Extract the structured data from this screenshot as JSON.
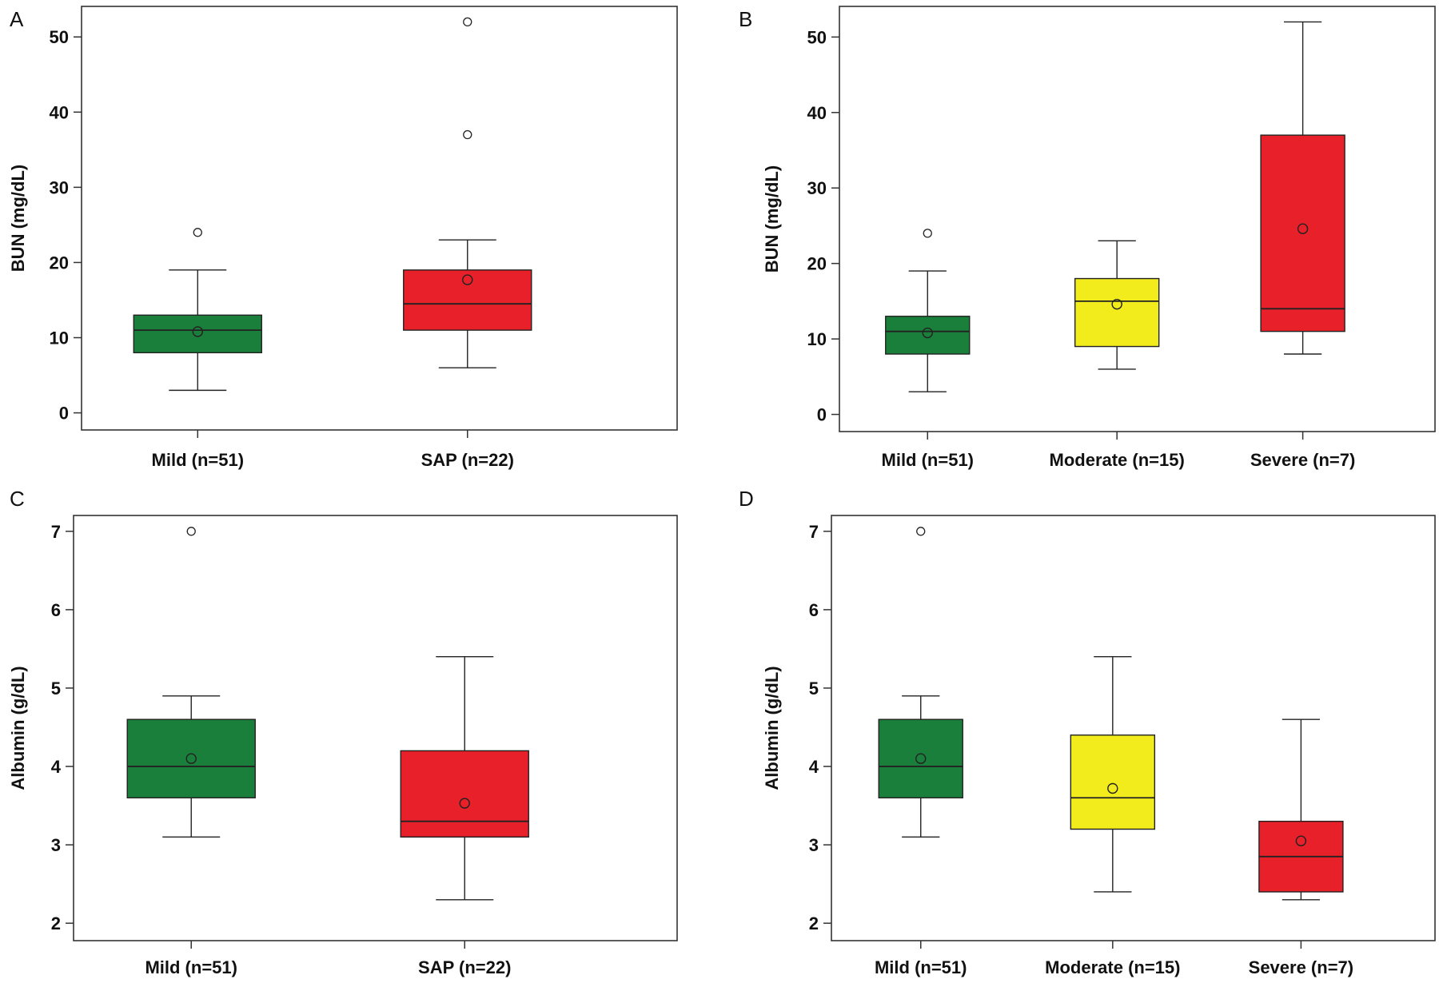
{
  "colors": {
    "mild": "#1a7f3b",
    "moderate": "#f2ec1d",
    "severe": "#e8202a",
    "frame": "#333333",
    "line": "#222222"
  },
  "chart_data": [
    {
      "panel": "A",
      "type": "box",
      "ylabel": "BUN (mg/dL)",
      "ylim": [
        -1,
        53
      ],
      "yticks": [
        0,
        10,
        20,
        30,
        40,
        50
      ],
      "categories": [
        "Mild (n=51)",
        "SAP (n=22)"
      ],
      "boxes": [
        {
          "color": "mild",
          "q1": 8,
          "median": 11,
          "q3": 13,
          "whisker_low": 3,
          "whisker_high": 19,
          "mean": 10.8,
          "outliers": [
            24
          ]
        },
        {
          "color": "severe",
          "q1": 11,
          "median": 14.5,
          "q3": 19,
          "whisker_low": 6,
          "whisker_high": 23,
          "mean": 17.7,
          "outliers": [
            37,
            52
          ]
        }
      ]
    },
    {
      "panel": "B",
      "type": "box",
      "ylabel": "BUN (mg/dL)",
      "ylim": [
        -1,
        53
      ],
      "yticks": [
        0,
        10,
        20,
        30,
        40,
        50
      ],
      "categories": [
        "Mild (n=51)",
        "Moderate (n=15)",
        "Severe (n=7)"
      ],
      "boxes": [
        {
          "color": "mild",
          "q1": 8,
          "median": 11,
          "q3": 13,
          "whisker_low": 3,
          "whisker_high": 19,
          "mean": 10.8,
          "outliers": [
            24
          ]
        },
        {
          "color": "moderate",
          "q1": 9,
          "median": 15,
          "q3": 18,
          "whisker_low": 6,
          "whisker_high": 23,
          "mean": 14.6,
          "outliers": []
        },
        {
          "color": "severe",
          "q1": 11,
          "median": 14,
          "q3": 37,
          "whisker_low": 8,
          "whisker_high": 52,
          "mean": 24.6,
          "outliers": []
        }
      ]
    },
    {
      "panel": "C",
      "type": "box",
      "ylabel": "Albumin (g/dL)",
      "ylim": [
        1.9,
        7.1
      ],
      "yticks": [
        2,
        3,
        4,
        5,
        6,
        7
      ],
      "categories": [
        "Mild (n=51)",
        "SAP (n=22)"
      ],
      "boxes": [
        {
          "color": "mild",
          "q1": 3.6,
          "median": 4.0,
          "q3": 4.6,
          "whisker_low": 3.1,
          "whisker_high": 4.9,
          "mean": 4.1,
          "outliers": [
            7.0
          ]
        },
        {
          "color": "severe",
          "q1": 3.1,
          "median": 3.3,
          "q3": 4.2,
          "whisker_low": 2.3,
          "whisker_high": 5.4,
          "mean": 3.53,
          "outliers": []
        }
      ]
    },
    {
      "panel": "D",
      "type": "box",
      "ylabel": "Albumin (g/dL)",
      "ylim": [
        1.9,
        7.1
      ],
      "yticks": [
        2,
        3,
        4,
        5,
        6,
        7
      ],
      "categories": [
        "Mild (n=51)",
        "Moderate (n=15)",
        "Severe (n=7)"
      ],
      "boxes": [
        {
          "color": "mild",
          "q1": 3.6,
          "median": 4.0,
          "q3": 4.6,
          "whisker_low": 3.1,
          "whisker_high": 4.9,
          "mean": 4.1,
          "outliers": [
            7.0
          ]
        },
        {
          "color": "moderate",
          "q1": 3.2,
          "median": 3.6,
          "q3": 4.4,
          "whisker_low": 2.4,
          "whisker_high": 5.4,
          "mean": 3.72,
          "outliers": []
        },
        {
          "color": "severe",
          "q1": 2.4,
          "median": 2.85,
          "q3": 3.3,
          "whisker_low": 2.3,
          "whisker_high": 4.6,
          "mean": 3.05,
          "outliers": []
        }
      ]
    }
  ]
}
